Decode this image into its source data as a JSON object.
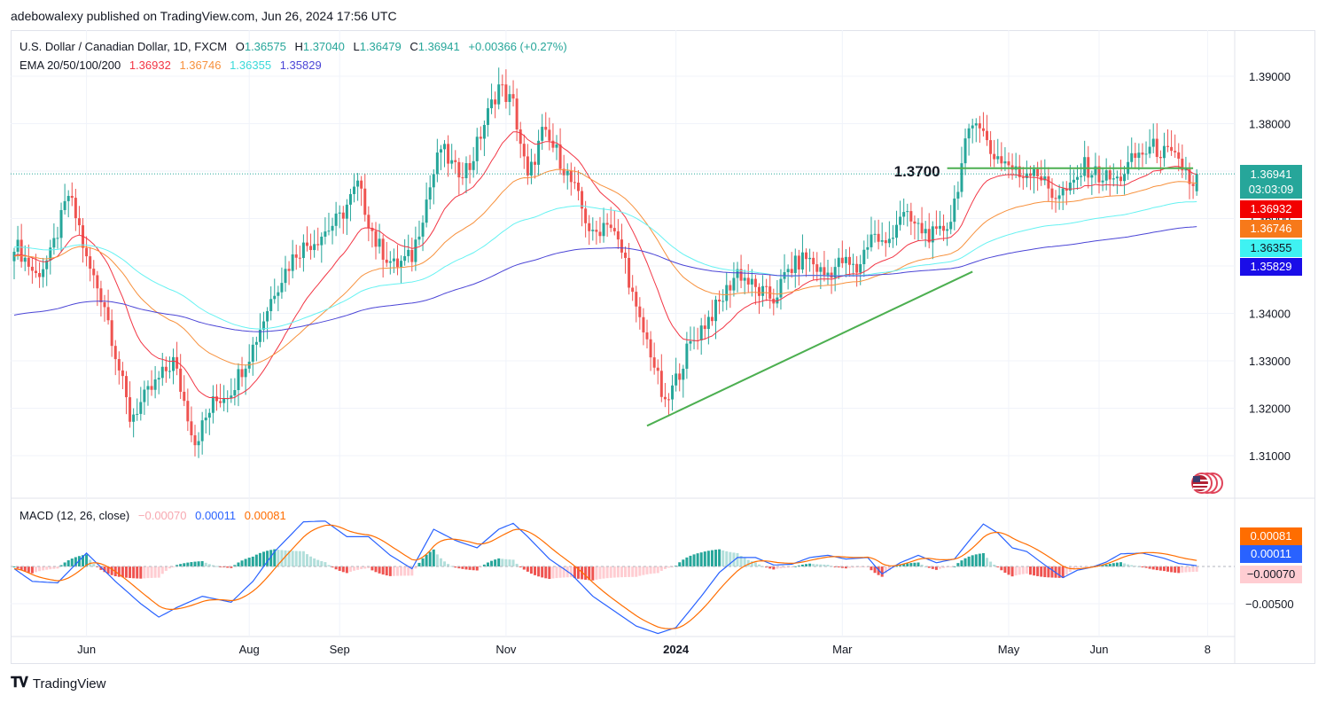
{
  "publisher_line": "adebowalexy published on TradingView.com, Jun 26, 2024 17:56 UTC",
  "header": {
    "symbol": "U.S. Dollar / Canadian Dollar, 1D, FXCM",
    "o_label": "O",
    "o_value": "1.36575",
    "h_label": "H",
    "h_value": "1.37040",
    "l_label": "L",
    "l_value": "1.36479",
    "c_label": "C",
    "c_value": "1.36941",
    "change": "+0.00366 (+0.27%)"
  },
  "ema_legend": {
    "label": "EMA 20/50/100/200",
    "ema20": "1.36932",
    "ema50": "1.36746",
    "ema100": "1.36355",
    "ema200": "1.35829"
  },
  "macd_legend": {
    "label": "MACD (12, 26, close)",
    "hist": "−0.00070",
    "macd": "0.00011",
    "signal": "0.00081"
  },
  "price_tags": {
    "last": "1.36941",
    "countdown": "03:03:09",
    "ema20": "1.36932",
    "ema50": "1.36746",
    "ema100": "1.36355",
    "ema200": "1.35829",
    "macd_signal": "0.00081",
    "macd": "0.00011",
    "macd_hist": "−0.00070"
  },
  "annotation": {
    "level_label": "1.3700",
    "level": 1.37
  },
  "footer": {
    "brand": "TradingView"
  },
  "colors": {
    "up": "#26a69a",
    "down": "#ef5350",
    "ema20": "#f23645",
    "ema50": "#f7913d",
    "ema100": "#66f2f2",
    "ema200": "#4b45d6",
    "trend": "#4caf50",
    "macd": "#2962ff",
    "signal": "#ff6d00",
    "hist_up": "#26a69a",
    "hist_up_light": "#b2dfdb",
    "hist_down": "#ef5350",
    "hist_down_light": "#ffcdd2"
  },
  "chart_data": [
    {
      "type": "candlestick",
      "series_name": "U.S. Dollar / Canadian Dollar",
      "y_ticks": [
        "1.31000",
        "1.32000",
        "1.33000",
        "1.34000",
        "1.35000",
        "1.36000",
        "1.37000",
        "1.38000",
        "1.39000"
      ],
      "y_tick_values": [
        1.31,
        1.32,
        1.33,
        1.34,
        1.35,
        1.36,
        1.37,
        1.38,
        1.39
      ],
      "ylim": [
        1.303,
        1.4
      ],
      "x_ticks": [
        "Jun",
        "Aug",
        "Sep",
        "Nov",
        "2024",
        "Mar",
        "May",
        "Jun",
        "8"
      ],
      "x_tick_bars": [
        20,
        65,
        90,
        136,
        183,
        229,
        275,
        300,
        330
      ],
      "key_closes": [
        [
          0,
          1.355
        ],
        [
          6,
          1.348
        ],
        [
          10,
          1.352
        ],
        [
          15,
          1.365
        ],
        [
          18,
          1.358
        ],
        [
          20,
          1.351
        ],
        [
          25,
          1.342
        ],
        [
          32,
          1.318
        ],
        [
          38,
          1.324
        ],
        [
          44,
          1.33
        ],
        [
          50,
          1.313
        ],
        [
          55,
          1.321
        ],
        [
          60,
          1.324
        ],
        [
          66,
          1.333
        ],
        [
          72,
          1.345
        ],
        [
          78,
          1.353
        ],
        [
          84,
          1.356
        ],
        [
          90,
          1.36
        ],
        [
          95,
          1.367
        ],
        [
          100,
          1.355
        ],
        [
          105,
          1.35
        ],
        [
          110,
          1.352
        ],
        [
          114,
          1.364
        ],
        [
          118,
          1.375
        ],
        [
          122,
          1.37
        ],
        [
          126,
          1.371
        ],
        [
          130,
          1.38
        ],
        [
          134,
          1.388
        ],
        [
          138,
          1.384
        ],
        [
          142,
          1.368
        ],
        [
          146,
          1.378
        ],
        [
          150,
          1.374
        ],
        [
          155,
          1.366
        ],
        [
          160,
          1.356
        ],
        [
          164,
          1.36
        ],
        [
          169,
          1.351
        ],
        [
          172,
          1.34
        ],
        [
          176,
          1.332
        ],
        [
          180,
          1.32
        ],
        [
          183,
          1.326
        ],
        [
          186,
          1.332
        ],
        [
          190,
          1.337
        ],
        [
          195,
          1.342
        ],
        [
          200,
          1.349
        ],
        [
          205,
          1.345
        ],
        [
          210,
          1.343
        ],
        [
          214,
          1.349
        ],
        [
          219,
          1.352
        ],
        [
          224,
          1.348
        ],
        [
          229,
          1.351
        ],
        [
          233,
          1.349
        ],
        [
          237,
          1.357
        ],
        [
          241,
          1.354
        ],
        [
          245,
          1.361
        ],
        [
          250,
          1.358
        ],
        [
          255,
          1.356
        ],
        [
          259,
          1.36
        ],
        [
          263,
          1.375
        ],
        [
          266,
          1.382
        ],
        [
          270,
          1.374
        ],
        [
          274,
          1.372
        ],
        [
          278,
          1.369
        ],
        [
          282,
          1.371
        ],
        [
          287,
          1.365
        ],
        [
          292,
          1.366
        ],
        [
          296,
          1.371
        ],
        [
          300,
          1.369
        ],
        [
          305,
          1.368
        ],
        [
          310,
          1.373
        ],
        [
          315,
          1.375
        ],
        [
          320,
          1.373
        ],
        [
          324,
          1.37
        ],
        [
          326,
          1.366
        ],
        [
          327,
          1.3694
        ]
      ]
    },
    {
      "type": "line",
      "series_name": "EMA 20/50/100/200",
      "series": [
        {
          "name": "EMA 20",
          "last": 1.36932
        },
        {
          "name": "EMA 50",
          "last": 1.36746
        },
        {
          "name": "EMA 100",
          "last": 1.36355
        },
        {
          "name": "EMA 200",
          "last": 1.35829
        }
      ]
    },
    {
      "type": "line",
      "series_name": "Trendline",
      "points": [
        [
          175,
          1.3163
        ],
        [
          265,
          1.3488
        ]
      ]
    },
    {
      "type": "line",
      "series_name": "Resistance 1.3700",
      "points": [
        [
          258,
          1.3706
        ],
        [
          326,
          1.3706
        ]
      ]
    },
    {
      "type": "bar",
      "series_name": "MACD (12, 26, close)",
      "y_ticks": [
        "−0.00500"
      ],
      "y_tick_values": [
        -0.005
      ],
      "ylim": [
        -0.0078,
        0.0069
      ],
      "key_macd": [
        [
          0,
          -0.0003
        ],
        [
          5,
          -0.002
        ],
        [
          12,
          -0.0022
        ],
        [
          20,
          0.0018
        ],
        [
          28,
          -0.002
        ],
        [
          35,
          -0.005
        ],
        [
          40,
          -0.0068
        ],
        [
          45,
          -0.0055
        ],
        [
          52,
          -0.004
        ],
        [
          60,
          -0.0048
        ],
        [
          66,
          -0.002
        ],
        [
          72,
          0.002
        ],
        [
          80,
          0.006
        ],
        [
          86,
          0.0061
        ],
        [
          92,
          0.004
        ],
        [
          98,
          0.004
        ],
        [
          104,
          0.0015
        ],
        [
          110,
          -0.0003
        ],
        [
          116,
          0.005
        ],
        [
          122,
          0.0035
        ],
        [
          128,
          0.0025
        ],
        [
          134,
          0.005
        ],
        [
          138,
          0.0058
        ],
        [
          142,
          0.004
        ],
        [
          148,
          0.001
        ],
        [
          154,
          -0.001
        ],
        [
          160,
          -0.004
        ],
        [
          166,
          -0.006
        ],
        [
          172,
          -0.008
        ],
        [
          178,
          -0.009
        ],
        [
          183,
          -0.0082
        ],
        [
          190,
          -0.004
        ],
        [
          195,
          -0.0008
        ],
        [
          200,
          0.0012
        ],
        [
          205,
          0.0012
        ],
        [
          210,
          0.0002
        ],
        [
          215,
          0.0003
        ],
        [
          220,
          0.0012
        ],
        [
          225,
          0.0015
        ],
        [
          230,
          0.001
        ],
        [
          236,
          0.0012
        ],
        [
          240,
          -0.001
        ],
        [
          245,
          0.0005
        ],
        [
          250,
          0.0015
        ],
        [
          255,
          0.0005
        ],
        [
          260,
          0.001
        ],
        [
          265,
          0.004
        ],
        [
          268,
          0.0057
        ],
        [
          272,
          0.0045
        ],
        [
          276,
          0.0025
        ],
        [
          280,
          0.002
        ],
        [
          285,
          0.0002
        ],
        [
          290,
          -0.0015
        ],
        [
          294,
          -0.0005
        ],
        [
          298,
          -0.0001
        ],
        [
          302,
          0.0006
        ],
        [
          306,
          0.0017
        ],
        [
          312,
          0.0018
        ],
        [
          318,
          0.0011
        ],
        [
          322,
          0.0004
        ],
        [
          327,
          0.00011
        ]
      ],
      "last_macd": 0.00011,
      "last_signal": 0.00081,
      "last_hist": -0.0007
    }
  ]
}
